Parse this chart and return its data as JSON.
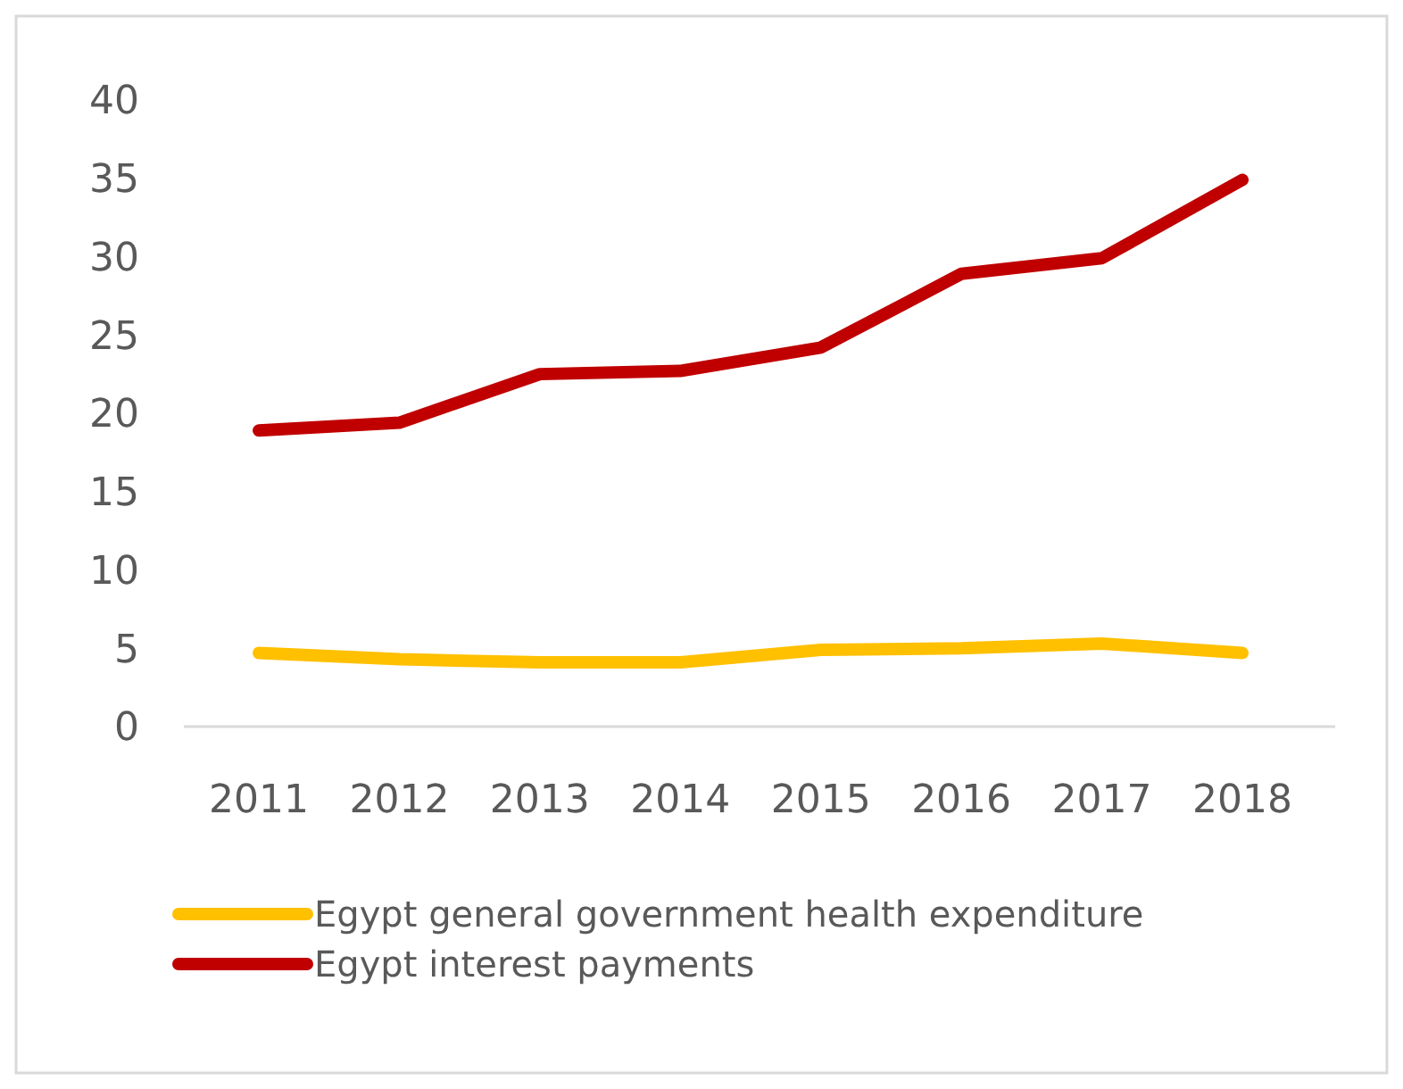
{
  "chart_data": {
    "type": "line",
    "categories": [
      "2011",
      "2012",
      "2013",
      "2014",
      "2015",
      "2016",
      "2017",
      "2018"
    ],
    "series": [
      {
        "name": "Egypt general government health expenditure",
        "color": "#ffc000",
        "values": [
          4.7,
          4.3,
          4.1,
          4.1,
          4.9,
          5.0,
          5.3,
          4.7
        ]
      },
      {
        "name": "Egypt interest payments",
        "color": "#c00000",
        "values": [
          18.9,
          19.4,
          22.5,
          22.7,
          24.2,
          28.9,
          29.9,
          34.9
        ]
      }
    ],
    "ylim": [
      0,
      40
    ],
    "yticks": [
      0,
      5,
      10,
      15,
      20,
      25,
      30,
      35,
      40
    ],
    "grid": false,
    "legend": "bottom",
    "marker": "none",
    "line_style": "solid"
  }
}
